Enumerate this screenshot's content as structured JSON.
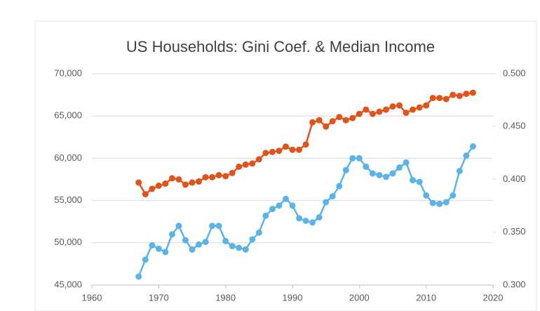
{
  "chart_data": {
    "type": "line",
    "title": "US Households: Gini Coef. & Median Income",
    "x": [
      1967,
      1968,
      1969,
      1970,
      1971,
      1972,
      1973,
      1974,
      1975,
      1976,
      1977,
      1978,
      1979,
      1980,
      1981,
      1982,
      1983,
      1984,
      1985,
      1986,
      1987,
      1988,
      1989,
      1990,
      1991,
      1992,
      1993,
      1994,
      1995,
      1996,
      1997,
      1998,
      1999,
      2000,
      2001,
      2002,
      2003,
      2004,
      2005,
      2006,
      2007,
      2008,
      2009,
      2010,
      2011,
      2012,
      2013,
      2014,
      2015,
      2016,
      2017
    ],
    "series": [
      {
        "color": "#5ab4e5",
        "axis": "y",
        "values": [
          46000,
          48000,
          49700,
          49300,
          48900,
          51000,
          52000,
          50300,
          49200,
          49800,
          50100,
          52000,
          52000,
          50200,
          49600,
          49400,
          49200,
          50400,
          51200,
          53200,
          54000,
          54400,
          55200,
          54400,
          52900,
          52600,
          52400,
          53000,
          54800,
          55500,
          56700,
          58600,
          60000,
          60000,
          59000,
          58200,
          58000,
          57800,
          58200,
          58900,
          59500,
          57400,
          57200,
          55600,
          54700,
          54600,
          54800,
          55600,
          58500,
          60300,
          61400
        ]
      },
      {
        "color": "#e0541c",
        "axis": "y2",
        "values": [
          0.397,
          0.386,
          0.391,
          0.394,
          0.396,
          0.401,
          0.4,
          0.395,
          0.397,
          0.398,
          0.402,
          0.402,
          0.404,
          0.403,
          0.406,
          0.412,
          0.414,
          0.415,
          0.419,
          0.425,
          0.426,
          0.427,
          0.431,
          0.428,
          0.428,
          0.433,
          0.454,
          0.456,
          0.45,
          0.455,
          0.459,
          0.456,
          0.458,
          0.462,
          0.466,
          0.462,
          0.464,
          0.466,
          0.469,
          0.47,
          0.463,
          0.466,
          0.468,
          0.47,
          0.477,
          0.477,
          0.476,
          0.48,
          0.479,
          0.481,
          0.482
        ]
      }
    ],
    "xlim": [
      1960,
      2020
    ],
    "xticks": [
      1960,
      1970,
      1980,
      1990,
      2000,
      2010,
      2020
    ],
    "ylim": [
      45000,
      70000
    ],
    "yticks": [
      {
        "value": 45000,
        "label": "45,000"
      },
      {
        "value": 50000,
        "label": "50,000"
      },
      {
        "value": 55000,
        "label": "55,000"
      },
      {
        "value": 60000,
        "label": "60,000"
      },
      {
        "value": 65000,
        "label": "65,000"
      },
      {
        "value": 70000,
        "label": "70,000"
      }
    ],
    "y2lim": [
      0.3,
      0.5
    ],
    "y2ticks": [
      {
        "value": 0.3,
        "label": "0.300"
      },
      {
        "value": 0.35,
        "label": "0.350"
      },
      {
        "value": 0.4,
        "label": "0.400"
      },
      {
        "value": 0.45,
        "label": "0.450"
      },
      {
        "value": 0.5,
        "label": "0.500"
      }
    ],
    "grid": true
  }
}
